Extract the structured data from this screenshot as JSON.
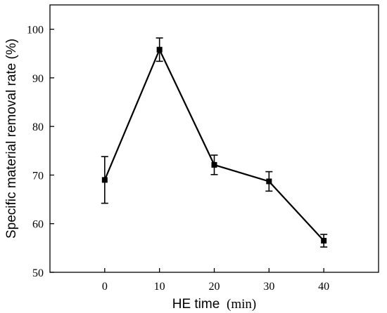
{
  "chart_data": {
    "type": "line",
    "xlabel_main": "HE time",
    "xlabel_unit": "(min)",
    "ylabel": "Specific material removal rate (%)",
    "x": [
      0,
      10,
      20,
      30,
      40
    ],
    "y": [
      69,
      95.8,
      72.1,
      68.7,
      56.5
    ],
    "err": [
      4.8,
      2.4,
      2.0,
      2.0,
      1.3
    ],
    "xlim": [
      -10,
      50
    ],
    "ylim": [
      50,
      105
    ],
    "xticks": [
      0,
      10,
      20,
      30,
      40
    ],
    "yticks": [
      50,
      60,
      70,
      80,
      90,
      100
    ],
    "marker": "square",
    "grid": false,
    "colors": {
      "series": "#000000",
      "axis": "#000000"
    }
  }
}
